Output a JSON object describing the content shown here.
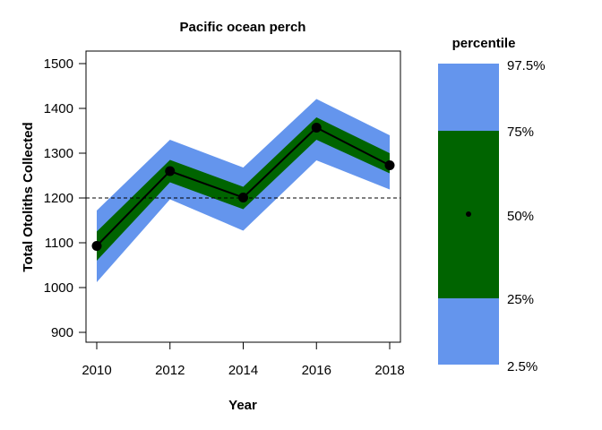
{
  "chart_data": {
    "type": "line",
    "title": "Pacific ocean perch",
    "xlabel": "Year",
    "ylabel": "Total Otoliths Collected",
    "x": [
      2010,
      2012,
      2014,
      2016,
      2018
    ],
    "xticks": [
      "2010",
      "2012",
      "2014",
      "2016",
      "2018"
    ],
    "yticks": [
      "900",
      "1000",
      "1100",
      "1200",
      "1300",
      "1400",
      "1500"
    ],
    "xlim": [
      2010,
      2018
    ],
    "ylim": [
      900,
      1500
    ],
    "reference_line": 1200,
    "median": [
      1093,
      1260,
      1201,
      1357,
      1273
    ],
    "band_95": {
      "lower": [
        1012,
        1197,
        1127,
        1284,
        1219
      ],
      "upper": [
        1172,
        1330,
        1268,
        1421,
        1340
      ]
    },
    "band_50": {
      "lower": [
        1060,
        1235,
        1175,
        1330,
        1255
      ],
      "upper": [
        1125,
        1285,
        1225,
        1380,
        1300
      ]
    },
    "colors": {
      "outer": "#6495ED",
      "inner": "#006400",
      "line": "#000000"
    },
    "grid": false,
    "legend": {
      "title": "percentile",
      "position": "right",
      "labels": [
        "97.5%",
        "75%",
        "50%",
        "25%",
        "2.5%"
      ]
    }
  }
}
